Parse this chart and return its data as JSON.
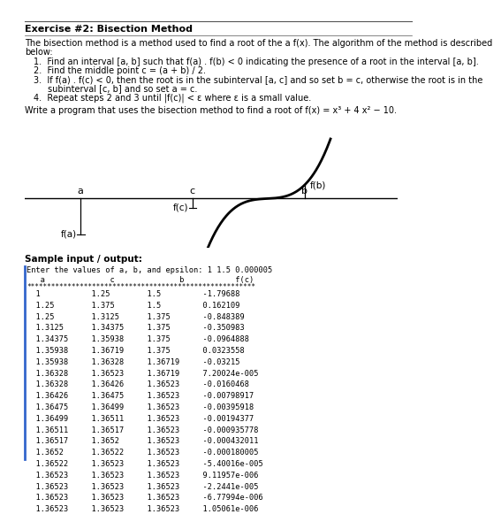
{
  "title": "Exercise #2: Bisection Method",
  "intro_line1": "The bisection method is a method used to find a root of the a f(x). The algorithm of the method is described",
  "intro_line2": "below:",
  "steps": [
    "Find an interval [a, b] such that f(a) . f(b) < 0 indicating the presence of a root in the interval [a, b].",
    "Find the middle point c = (a + b) / 2.",
    "If f(a) . f(c) < 0, then the root is in the subinterval [a, c] and so set b = c, otherwise the root is in the",
    "subinterval [c, b] and so set a = c.",
    "Repeat steps 2 and 3 until |f(c)| < ε where ε is a small value."
  ],
  "write_program": "Write a program that uses the bisection method to find a root of f(x) = x³ + 4 x² − 10.",
  "sample_label": "Sample input / output:",
  "input_line": "Enter the values of a, b, and epsilon: 1 1.5 0.000005",
  "table_data": [
    [
      "1",
      "1.25",
      "1.5",
      "-1.79688"
    ],
    [
      "1.25",
      "1.375",
      "1.5",
      "0.162109"
    ],
    [
      "1.25",
      "1.3125",
      "1.375",
      "-0.848389"
    ],
    [
      "1.3125",
      "1.34375",
      "1.375",
      "-0.350983"
    ],
    [
      "1.34375",
      "1.35938",
      "1.375",
      "-0.0964888"
    ],
    [
      "1.35938",
      "1.36719",
      "1.375",
      "0.0323558"
    ],
    [
      "1.35938",
      "1.36328",
      "1.36719",
      "-0.03215"
    ],
    [
      "1.36328",
      "1.36523",
      "1.36719",
      "7.20024e-005"
    ],
    [
      "1.36328",
      "1.36426",
      "1.36523",
      "-0.0160468"
    ],
    [
      "1.36426",
      "1.36475",
      "1.36523",
      "-0.00798917"
    ],
    [
      "1.36475",
      "1.36499",
      "1.36523",
      "-0.00395918"
    ],
    [
      "1.36499",
      "1.36511",
      "1.36523",
      "-0.00194377"
    ],
    [
      "1.36511",
      "1.36517",
      "1.36523",
      "-0.000935778"
    ],
    [
      "1.36517",
      "1.3652",
      "1.36523",
      "-0.000432011"
    ],
    [
      "1.3652",
      "1.36522",
      "1.36523",
      "-0.000180005"
    ],
    [
      "1.36522",
      "1.36523",
      "1.36523",
      "-5.40016e-005"
    ],
    [
      "1.36523",
      "1.36523",
      "1.36523",
      "9.11957e-006"
    ],
    [
      "1.36523",
      "1.36523",
      "1.36523",
      "-2.2441e-005"
    ],
    [
      "1.36523",
      "1.36523",
      "1.36523",
      "-6.77994e-006"
    ],
    [
      "1.36523",
      "1.36523",
      "1.36523",
      "1.05061e-006"
    ]
  ]
}
